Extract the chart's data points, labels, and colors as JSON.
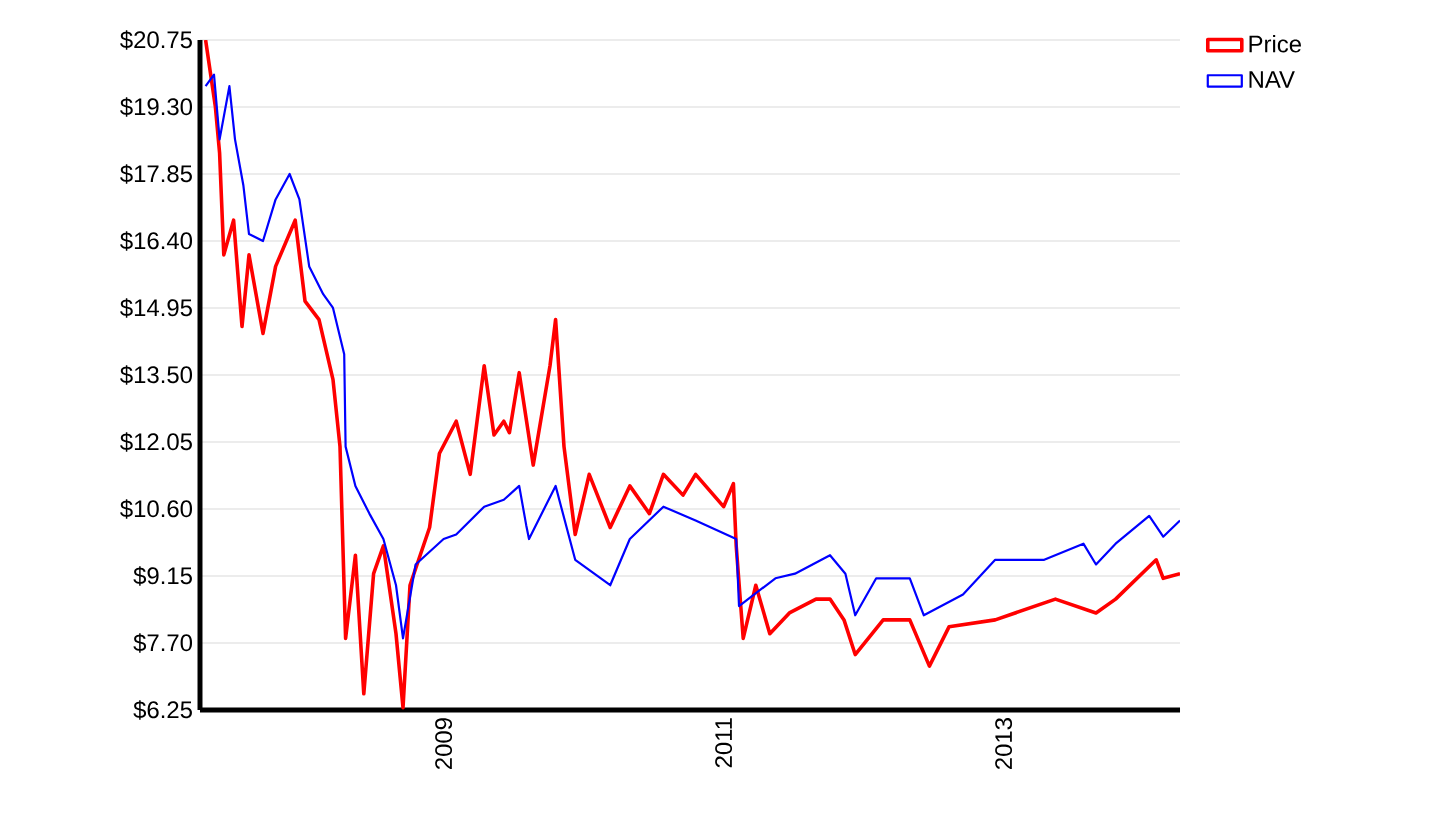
{
  "chart_data": {
    "type": "line",
    "xlim": [
      2007.26,
      2014.26
    ],
    "xticks": [
      2009,
      2011,
      2013
    ],
    "ylim": [
      6.25,
      20.75
    ],
    "yticks": [
      {
        "value": 6.25,
        "label": "$6.25"
      },
      {
        "value": 7.7,
        "label": "$7.70"
      },
      {
        "value": 9.15,
        "label": "$9.15"
      },
      {
        "value": 10.6,
        "label": "$10.60"
      },
      {
        "value": 12.05,
        "label": "$12.05"
      },
      {
        "value": 13.5,
        "label": "$13.50"
      },
      {
        "value": 14.95,
        "label": "$14.95"
      },
      {
        "value": 16.4,
        "label": "$16.40"
      },
      {
        "value": 17.85,
        "label": "$17.85"
      },
      {
        "value": 19.3,
        "label": "$19.30"
      },
      {
        "value": 20.75,
        "label": "$20.75"
      }
    ],
    "grid": "y",
    "legend": "top right",
    "series": [
      {
        "name": "Price",
        "color": "#ff0000",
        "x": [
          2007.3,
          2007.37,
          2007.4,
          2007.43,
          2007.5,
          2007.56,
          2007.61,
          2007.71,
          2007.8,
          2007.94,
          2008.01,
          2008.11,
          2008.21,
          2008.26,
          2008.3,
          2008.37,
          2008.43,
          2008.5,
          2008.57,
          2008.66,
          2008.71,
          2008.76,
          2008.9,
          2008.97,
          2009.09,
          2009.19,
          2009.29,
          2009.36,
          2009.43,
          2009.47,
          2009.54,
          2009.64,
          2009.76,
          2009.8,
          2009.86,
          2009.94,
          2010.04,
          2010.19,
          2010.33,
          2010.47,
          2010.57,
          2010.71,
          2010.8,
          2011.0,
          2011.07,
          2011.09,
          2011.14,
          2011.23,
          2011.33,
          2011.47,
          2011.66,
          2011.76,
          2011.86,
          2011.94,
          2012.14,
          2012.33,
          2012.47,
          2012.61,
          2012.94,
          2013.37,
          2013.66,
          2013.8,
          2014.09,
          2014.14,
          2014.26
        ],
        "values": [
          20.75,
          19.3,
          18.3,
          16.1,
          16.85,
          14.55,
          16.1,
          14.4,
          15.85,
          16.85,
          15.1,
          14.7,
          13.4,
          11.95,
          7.8,
          9.6,
          6.6,
          9.2,
          9.8,
          7.9,
          6.3,
          8.95,
          10.2,
          11.8,
          12.5,
          11.35,
          13.7,
          12.2,
          12.5,
          12.25,
          13.55,
          11.55,
          13.7,
          14.7,
          11.95,
          10.05,
          11.35,
          10.2,
          11.1,
          10.5,
          11.35,
          10.9,
          11.35,
          10.65,
          11.15,
          9.8,
          7.8,
          8.95,
          7.9,
          8.35,
          8.65,
          8.65,
          8.2,
          7.45,
          8.2,
          8.2,
          7.2,
          8.05,
          8.2,
          8.65,
          8.35,
          8.65,
          9.5,
          9.1,
          9.2
        ]
      },
      {
        "name": "NAV",
        "color": "#0000ff",
        "x": [
          2007.3,
          2007.36,
          2007.4,
          2007.47,
          2007.51,
          2007.57,
          2007.61,
          2007.71,
          2007.8,
          2007.9,
          2007.97,
          2008.04,
          2008.14,
          2008.21,
          2008.29,
          2008.3,
          2008.37,
          2008.47,
          2008.57,
          2008.66,
          2008.71,
          2008.8,
          2009.0,
          2009.09,
          2009.29,
          2009.43,
          2009.54,
          2009.59,
          2009.61,
          2009.8,
          2009.94,
          2010.19,
          2010.33,
          2010.57,
          2010.8,
          2011.09,
          2011.11,
          2011.37,
          2011.51,
          2011.76,
          2011.87,
          2011.94,
          2012.09,
          2012.33,
          2012.43,
          2012.71,
          2012.94,
          2013.29,
          2013.57,
          2013.66,
          2013.8,
          2014.04,
          2014.14,
          2014.26
        ],
        "values": [
          19.75,
          20.0,
          18.6,
          19.75,
          18.6,
          17.6,
          16.55,
          16.4,
          17.3,
          17.85,
          17.3,
          15.85,
          15.25,
          14.95,
          13.95,
          11.95,
          11.1,
          10.5,
          9.95,
          8.95,
          7.8,
          9.4,
          9.95,
          10.05,
          10.65,
          10.8,
          11.1,
          10.25,
          9.95,
          11.1,
          9.5,
          8.95,
          9.95,
          10.65,
          10.35,
          9.95,
          8.5,
          9.1,
          9.2,
          9.6,
          9.2,
          8.3,
          9.1,
          9.1,
          8.3,
          8.75,
          9.5,
          9.5,
          9.85,
          9.4,
          9.85,
          10.45,
          10.0,
          10.35
        ]
      }
    ]
  }
}
